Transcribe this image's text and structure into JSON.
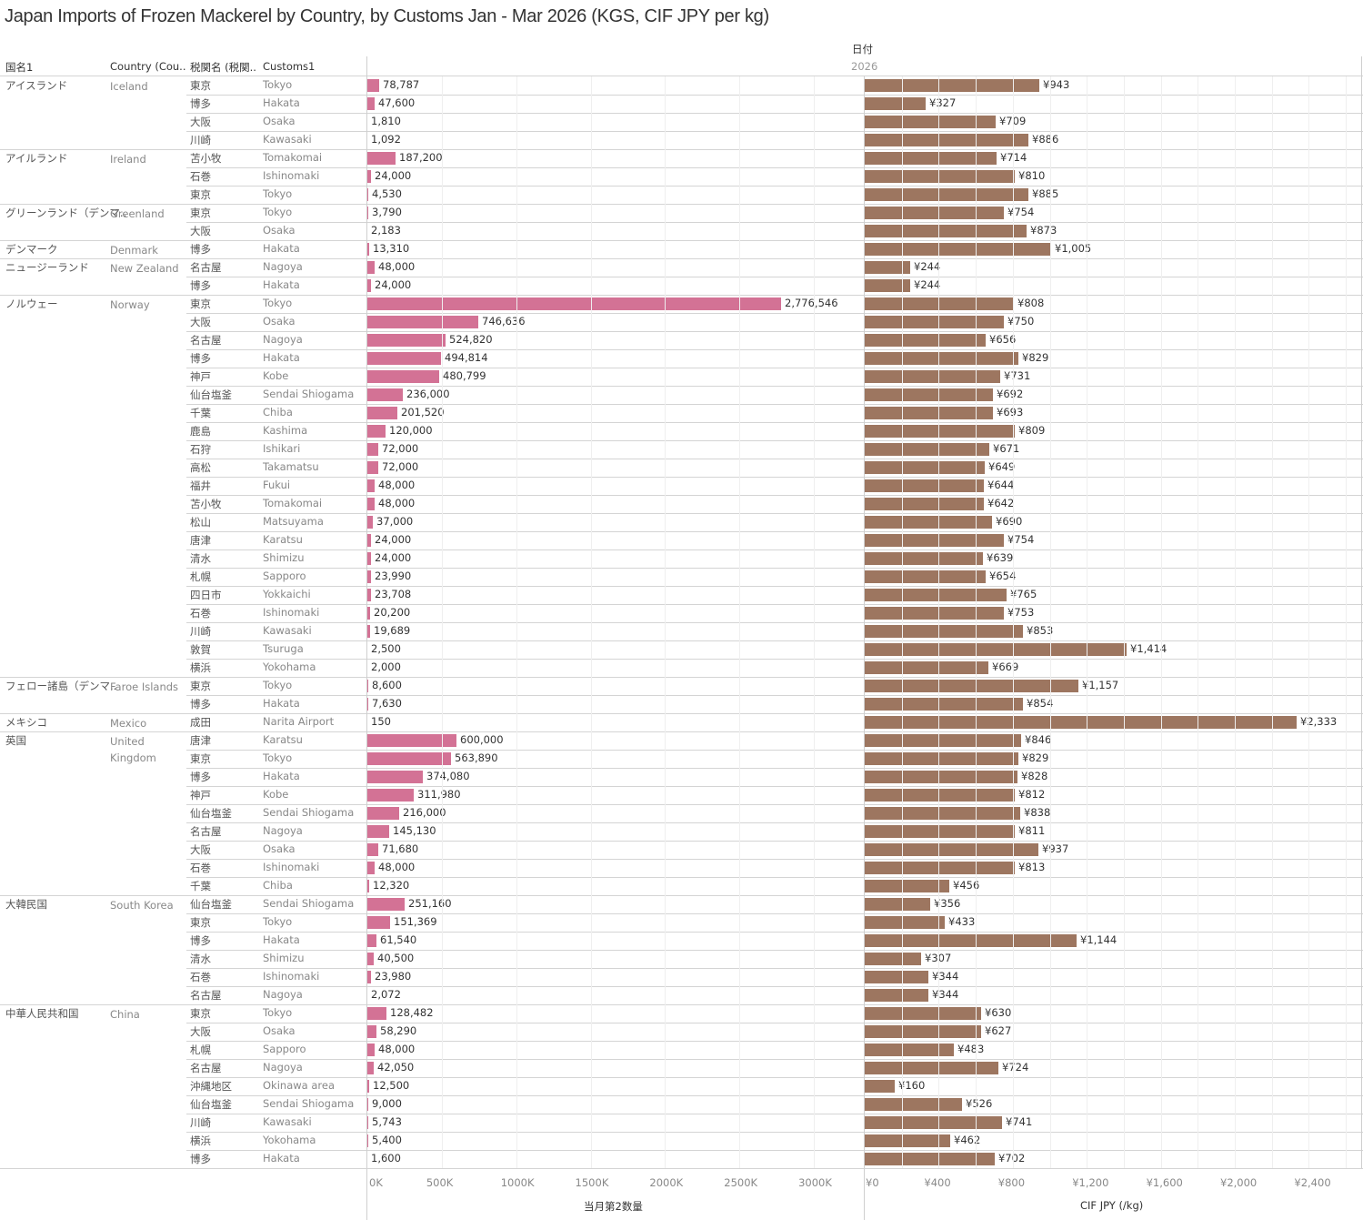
{
  "title": "Japan Imports of Frozen Mackerel by Country, by Customs Jan - Mar 2026 (KGS, CIF JPY per kg)",
  "headers": {
    "country_jp": "国名1",
    "country_en": "Country (Cou..",
    "customs_jp": "税関名 (税関..",
    "customs_en": "Customs1",
    "date_label": "日付",
    "year": "2026"
  },
  "colors": {
    "quantity_bar": "#d37295",
    "price_bar": "#9d7660"
  },
  "chart_data": {
    "type": "bar",
    "orientation": "horizontal",
    "title": "Japan Imports of Frozen Mackerel by Country, by Customs Jan - Mar 2026 (KGS, CIF JPY per kg)",
    "panels": [
      {
        "name": "quantity",
        "xlabel": "当月第2数量",
        "xlim": [
          0,
          3350000
        ],
        "ticks": [
          0,
          500000,
          1000000,
          1500000,
          2000000,
          2500000,
          3000000
        ],
        "tick_labels": [
          "0K",
          "500K",
          "1000K",
          "1500K",
          "2000K",
          "2500K",
          "3000K"
        ],
        "unit": "KGS"
      },
      {
        "name": "price",
        "xlabel": "CIF JPY (/kg)",
        "xlim": [
          0,
          2650
        ],
        "ticks": [
          0,
          400,
          800,
          1200,
          1600,
          2000,
          2400
        ],
        "tick_labels": [
          "¥0",
          "¥400",
          "¥800",
          "¥1,200",
          "¥1,600",
          "¥2,000",
          "¥2,400"
        ],
        "unit": "JPY/kg"
      }
    ],
    "groups": [
      {
        "country_jp": "アイスランド",
        "country_en": "Iceland",
        "rows": [
          {
            "customs_jp": "東京",
            "customs_en": "Tokyo",
            "qty": 78787,
            "qty_label": "78,787",
            "price": 943,
            "price_label": "¥943"
          },
          {
            "customs_jp": "博多",
            "customs_en": "Hakata",
            "qty": 47600,
            "qty_label": "47,600",
            "price": 327,
            "price_label": "¥327"
          },
          {
            "customs_jp": "大阪",
            "customs_en": "Osaka",
            "qty": 1810,
            "qty_label": "1,810",
            "price": 709,
            "price_label": "¥709"
          },
          {
            "customs_jp": "川崎",
            "customs_en": "Kawasaki",
            "qty": 1092,
            "qty_label": "1,092",
            "price": 886,
            "price_label": "¥886"
          }
        ]
      },
      {
        "country_jp": "アイルランド",
        "country_en": "Ireland",
        "rows": [
          {
            "customs_jp": "苫小牧",
            "customs_en": "Tomakomai",
            "qty": 187200,
            "qty_label": "187,200",
            "price": 714,
            "price_label": "¥714"
          },
          {
            "customs_jp": "石巻",
            "customs_en": "Ishinomaki",
            "qty": 24000,
            "qty_label": "24,000",
            "price": 810,
            "price_label": "¥810"
          },
          {
            "customs_jp": "東京",
            "customs_en": "Tokyo",
            "qty": 4530,
            "qty_label": "4,530",
            "price": 885,
            "price_label": "¥885"
          }
        ]
      },
      {
        "country_jp": "グリーンランド（デンマ..",
        "country_en": "Greenland",
        "rows": [
          {
            "customs_jp": "東京",
            "customs_en": "Tokyo",
            "qty": 3790,
            "qty_label": "3,790",
            "price": 754,
            "price_label": "¥754"
          },
          {
            "customs_jp": "大阪",
            "customs_en": "Osaka",
            "qty": 2183,
            "qty_label": "2,183",
            "price": 873,
            "price_label": "¥873"
          }
        ]
      },
      {
        "country_jp": "デンマーク",
        "country_en": "Denmark",
        "rows": [
          {
            "customs_jp": "博多",
            "customs_en": "Hakata",
            "qty": 13310,
            "qty_label": "13,310",
            "price": 1005,
            "price_label": "¥1,005"
          }
        ]
      },
      {
        "country_jp": "ニュージーランド",
        "country_en": "New Zealand",
        "rows": [
          {
            "customs_jp": "名古屋",
            "customs_en": "Nagoya",
            "qty": 48000,
            "qty_label": "48,000",
            "price": 244,
            "price_label": "¥244"
          },
          {
            "customs_jp": "博多",
            "customs_en": "Hakata",
            "qty": 24000,
            "qty_label": "24,000",
            "price": 244,
            "price_label": "¥244"
          }
        ]
      },
      {
        "country_jp": "ノルウェー",
        "country_en": "Norway",
        "rows": [
          {
            "customs_jp": "東京",
            "customs_en": "Tokyo",
            "qty": 2776546,
            "qty_label": "2,776,546",
            "price": 808,
            "price_label": "¥808"
          },
          {
            "customs_jp": "大阪",
            "customs_en": "Osaka",
            "qty": 746636,
            "qty_label": "746,636",
            "price": 750,
            "price_label": "¥750"
          },
          {
            "customs_jp": "名古屋",
            "customs_en": "Nagoya",
            "qty": 524820,
            "qty_label": "524,820",
            "price": 656,
            "price_label": "¥656"
          },
          {
            "customs_jp": "博多",
            "customs_en": "Hakata",
            "qty": 494814,
            "qty_label": "494,814",
            "price": 829,
            "price_label": "¥829"
          },
          {
            "customs_jp": "神戸",
            "customs_en": "Kobe",
            "qty": 480799,
            "qty_label": "480,799",
            "price": 731,
            "price_label": "¥731"
          },
          {
            "customs_jp": "仙台塩釜",
            "customs_en": "Sendai Shiogama",
            "qty": 236000,
            "qty_label": "236,000",
            "price": 692,
            "price_label": "¥692"
          },
          {
            "customs_jp": "千葉",
            "customs_en": "Chiba",
            "qty": 201520,
            "qty_label": "201,520",
            "price": 693,
            "price_label": "¥693"
          },
          {
            "customs_jp": "鹿島",
            "customs_en": "Kashima",
            "qty": 120000,
            "qty_label": "120,000",
            "price": 809,
            "price_label": "¥809"
          },
          {
            "customs_jp": "石狩",
            "customs_en": "Ishikari",
            "qty": 72000,
            "qty_label": "72,000",
            "price": 671,
            "price_label": "¥671"
          },
          {
            "customs_jp": "高松",
            "customs_en": "Takamatsu",
            "qty": 72000,
            "qty_label": "72,000",
            "price": 649,
            "price_label": "¥649"
          },
          {
            "customs_jp": "福井",
            "customs_en": "Fukui",
            "qty": 48000,
            "qty_label": "48,000",
            "price": 644,
            "price_label": "¥644"
          },
          {
            "customs_jp": "苫小牧",
            "customs_en": "Tomakomai",
            "qty": 48000,
            "qty_label": "48,000",
            "price": 642,
            "price_label": "¥642"
          },
          {
            "customs_jp": "松山",
            "customs_en": "Matsuyama",
            "qty": 37000,
            "qty_label": "37,000",
            "price": 690,
            "price_label": "¥690"
          },
          {
            "customs_jp": "唐津",
            "customs_en": "Karatsu",
            "qty": 24000,
            "qty_label": "24,000",
            "price": 754,
            "price_label": "¥754"
          },
          {
            "customs_jp": "清水",
            "customs_en": "Shimizu",
            "qty": 24000,
            "qty_label": "24,000",
            "price": 639,
            "price_label": "¥639"
          },
          {
            "customs_jp": "札幌",
            "customs_en": "Sapporo",
            "qty": 23990,
            "qty_label": "23,990",
            "price": 654,
            "price_label": "¥654"
          },
          {
            "customs_jp": "四日市",
            "customs_en": "Yokkaichi",
            "qty": 23708,
            "qty_label": "23,708",
            "price": 765,
            "price_label": "¥765"
          },
          {
            "customs_jp": "石巻",
            "customs_en": "Ishinomaki",
            "qty": 20200,
            "qty_label": "20,200",
            "price": 753,
            "price_label": "¥753"
          },
          {
            "customs_jp": "川崎",
            "customs_en": "Kawasaki",
            "qty": 19689,
            "qty_label": "19,689",
            "price": 853,
            "price_label": "¥853"
          },
          {
            "customs_jp": "敦賀",
            "customs_en": "Tsuruga",
            "qty": 2500,
            "qty_label": "2,500",
            "price": 1414,
            "price_label": "¥1,414"
          },
          {
            "customs_jp": "横浜",
            "customs_en": "Yokohama",
            "qty": 2000,
            "qty_label": "2,000",
            "price": 669,
            "price_label": "¥669"
          }
        ]
      },
      {
        "country_jp": "フェロー諸島（デンマ..",
        "country_en": "Faroe Islands",
        "rows": [
          {
            "customs_jp": "東京",
            "customs_en": "Tokyo",
            "qty": 8600,
            "qty_label": "8,600",
            "price": 1157,
            "price_label": "¥1,157"
          },
          {
            "customs_jp": "博多",
            "customs_en": "Hakata",
            "qty": 7630,
            "qty_label": "7,630",
            "price": 854,
            "price_label": "¥854"
          }
        ]
      },
      {
        "country_jp": "メキシコ",
        "country_en": "Mexico",
        "rows": [
          {
            "customs_jp": "成田",
            "customs_en": "Narita Airport",
            "qty": 150,
            "qty_label": "150",
            "price": 2333,
            "price_label": "¥2,333"
          }
        ]
      },
      {
        "country_jp": "英国",
        "country_en": "United Kingdom",
        "rows": [
          {
            "customs_jp": "唐津",
            "customs_en": "Karatsu",
            "qty": 600000,
            "qty_label": "600,000",
            "price": 846,
            "price_label": "¥846"
          },
          {
            "customs_jp": "東京",
            "customs_en": "Tokyo",
            "qty": 563890,
            "qty_label": "563,890",
            "price": 829,
            "price_label": "¥829"
          },
          {
            "customs_jp": "博多",
            "customs_en": "Hakata",
            "qty": 374080,
            "qty_label": "374,080",
            "price": 828,
            "price_label": "¥828"
          },
          {
            "customs_jp": "神戸",
            "customs_en": "Kobe",
            "qty": 311980,
            "qty_label": "311,980",
            "price": 812,
            "price_label": "¥812"
          },
          {
            "customs_jp": "仙台塩釜",
            "customs_en": "Sendai Shiogama",
            "qty": 216000,
            "qty_label": "216,000",
            "price": 838,
            "price_label": "¥838"
          },
          {
            "customs_jp": "名古屋",
            "customs_en": "Nagoya",
            "qty": 145130,
            "qty_label": "145,130",
            "price": 811,
            "price_label": "¥811"
          },
          {
            "customs_jp": "大阪",
            "customs_en": "Osaka",
            "qty": 71680,
            "qty_label": "71,680",
            "price": 937,
            "price_label": "¥937"
          },
          {
            "customs_jp": "石巻",
            "customs_en": "Ishinomaki",
            "qty": 48000,
            "qty_label": "48,000",
            "price": 813,
            "price_label": "¥813"
          },
          {
            "customs_jp": "千葉",
            "customs_en": "Chiba",
            "qty": 12320,
            "qty_label": "12,320",
            "price": 456,
            "price_label": "¥456"
          }
        ]
      },
      {
        "country_jp": "大韓民国",
        "country_en": "South Korea",
        "rows": [
          {
            "customs_jp": "仙台塩釜",
            "customs_en": "Sendai Shiogama",
            "qty": 251160,
            "qty_label": "251,160",
            "price": 356,
            "price_label": "¥356"
          },
          {
            "customs_jp": "東京",
            "customs_en": "Tokyo",
            "qty": 151369,
            "qty_label": "151,369",
            "price": 433,
            "price_label": "¥433"
          },
          {
            "customs_jp": "博多",
            "customs_en": "Hakata",
            "qty": 61540,
            "qty_label": "61,540",
            "price": 1144,
            "price_label": "¥1,144"
          },
          {
            "customs_jp": "清水",
            "customs_en": "Shimizu",
            "qty": 40500,
            "qty_label": "40,500",
            "price": 307,
            "price_label": "¥307"
          },
          {
            "customs_jp": "石巻",
            "customs_en": "Ishinomaki",
            "qty": 23980,
            "qty_label": "23,980",
            "price": 344,
            "price_label": "¥344"
          },
          {
            "customs_jp": "名古屋",
            "customs_en": "Nagoya",
            "qty": 2072,
            "qty_label": "2,072",
            "price": 344,
            "price_label": "¥344"
          }
        ]
      },
      {
        "country_jp": "中華人民共和国",
        "country_en": "China",
        "rows": [
          {
            "customs_jp": "東京",
            "customs_en": "Tokyo",
            "qty": 128482,
            "qty_label": "128,482",
            "price": 630,
            "price_label": "¥630"
          },
          {
            "customs_jp": "大阪",
            "customs_en": "Osaka",
            "qty": 58290,
            "qty_label": "58,290",
            "price": 627,
            "price_label": "¥627"
          },
          {
            "customs_jp": "札幌",
            "customs_en": "Sapporo",
            "qty": 48000,
            "qty_label": "48,000",
            "price": 483,
            "price_label": "¥483"
          },
          {
            "customs_jp": "名古屋",
            "customs_en": "Nagoya",
            "qty": 42050,
            "qty_label": "42,050",
            "price": 724,
            "price_label": "¥724"
          },
          {
            "customs_jp": "沖縄地区",
            "customs_en": "Okinawa area",
            "qty": 12500,
            "qty_label": "12,500",
            "price": 160,
            "price_label": "¥160"
          },
          {
            "customs_jp": "仙台塩釜",
            "customs_en": "Sendai Shiogama",
            "qty": 9000,
            "qty_label": "9,000",
            "price": 526,
            "price_label": "¥526"
          },
          {
            "customs_jp": "川崎",
            "customs_en": "Kawasaki",
            "qty": 5743,
            "qty_label": "5,743",
            "price": 741,
            "price_label": "¥741"
          },
          {
            "customs_jp": "横浜",
            "customs_en": "Yokohama",
            "qty": 5400,
            "qty_label": "5,400",
            "price": 462,
            "price_label": "¥462"
          },
          {
            "customs_jp": "博多",
            "customs_en": "Hakata",
            "qty": 1600,
            "qty_label": "1,600",
            "price": 702,
            "price_label": "¥702"
          }
        ]
      }
    ]
  }
}
